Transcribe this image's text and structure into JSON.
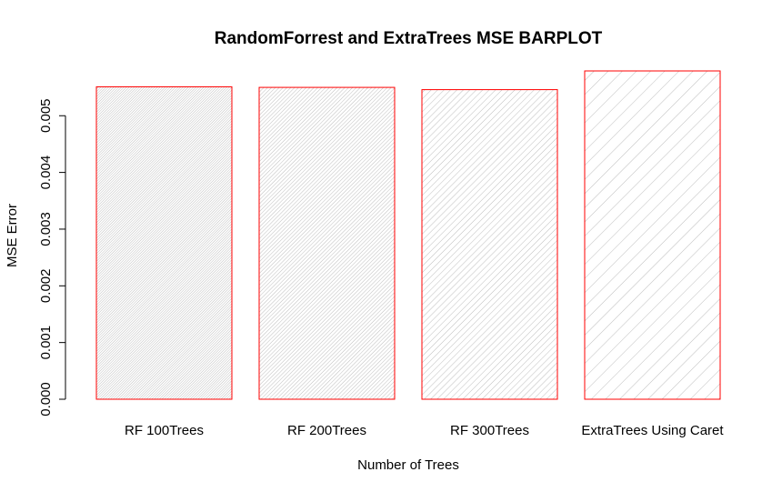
{
  "chart_data": {
    "type": "bar",
    "title": "RandomForrest and ExtraTrees MSE BARPLOT",
    "xlabel": "Number of Trees",
    "ylabel": "MSE Error",
    "categories": [
      "RF 100Trees",
      "RF 200Trees",
      "RF 300Trees",
      "ExtraTrees Using Caret"
    ],
    "values": [
      0.00551,
      0.0055,
      0.00546,
      0.00579
    ],
    "ylim": [
      0,
      0.00579
    ],
    "yticks": [
      "0.000",
      "0.001",
      "0.002",
      "0.003",
      "0.004",
      "0.005"
    ],
    "grid": false,
    "legend": "none",
    "colors": {
      "bar_border": "#ff0000",
      "hatch": "#bebebe"
    }
  }
}
